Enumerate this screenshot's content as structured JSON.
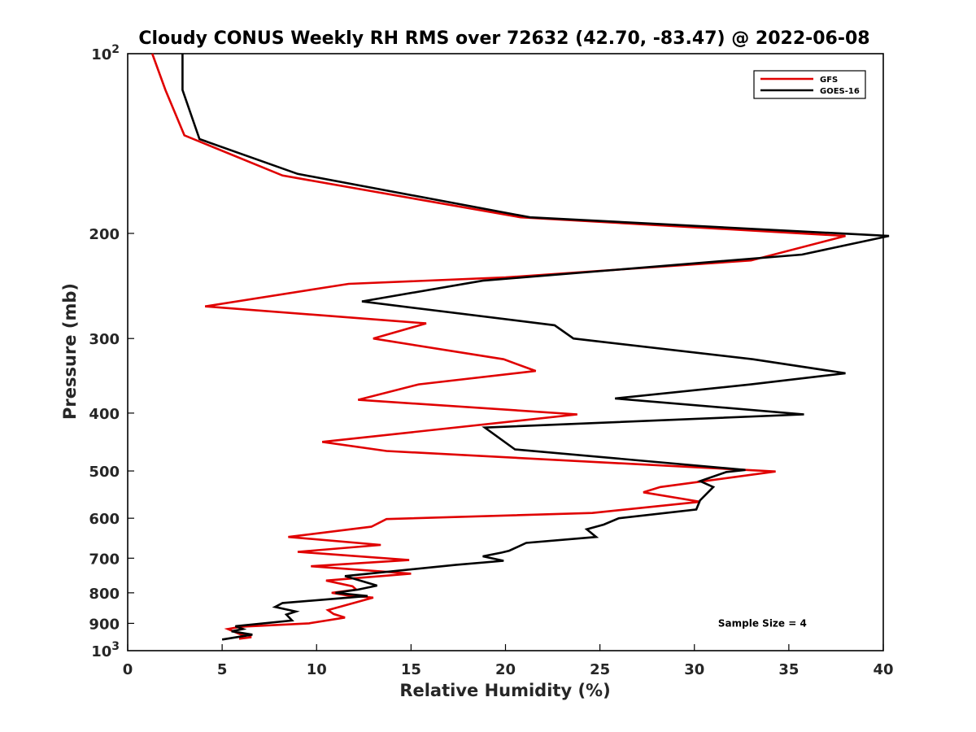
{
  "chart_data": {
    "type": "line",
    "title": "Cloudy CONUS Weekly RH RMS over 72632 (42.70, -83.47) @ 2022-06-08",
    "xlabel": "Relative Humidity (%)",
    "ylabel": "Pressure (mb)",
    "xlim": [
      0,
      40
    ],
    "ylim": [
      100,
      1000
    ],
    "y_scale": "log",
    "y_reversed": true,
    "grid": false,
    "legend_position": "top-right",
    "x_ticks": [
      0,
      5,
      10,
      15,
      20,
      25,
      30,
      35,
      40
    ],
    "x_tick_labels": [
      "0",
      "5",
      "10",
      "15",
      "20",
      "25",
      "30",
      "35",
      "40"
    ],
    "y_ticks": [
      200,
      300,
      400,
      500,
      600,
      700,
      800,
      900
    ],
    "y_tick_labels": [
      "200",
      "300",
      "400",
      "500",
      "600",
      "700",
      "800",
      "900"
    ],
    "y_end_ticks": [
      {
        "value": 100,
        "base": "10",
        "exp": "2"
      },
      {
        "value": 1000,
        "base": "10",
        "exp": "3"
      }
    ],
    "series": [
      {
        "name": "GFS",
        "color": "#e00000",
        "points": [
          [
            1.3,
            100
          ],
          [
            2.0,
            115
          ],
          [
            3.0,
            137
          ],
          [
            8.2,
            160
          ],
          [
            20.8,
            188
          ],
          [
            38.0,
            202
          ],
          [
            33.0,
            222
          ],
          [
            20.0,
            237
          ],
          [
            11.7,
            243
          ],
          [
            4.1,
            265
          ],
          [
            15.8,
            283
          ],
          [
            13.0,
            300
          ],
          [
            19.9,
            325
          ],
          [
            21.6,
            340
          ],
          [
            15.4,
            358
          ],
          [
            12.2,
            380
          ],
          [
            23.8,
            402
          ],
          [
            10.3,
            447
          ],
          [
            13.7,
            463
          ],
          [
            34.3,
            501
          ],
          [
            28.2,
            532
          ],
          [
            27.3,
            543
          ],
          [
            30.3,
            563
          ],
          [
            24.6,
            588
          ],
          [
            13.7,
            602
          ],
          [
            12.9,
            620
          ],
          [
            8.5,
            645
          ],
          [
            13.4,
            665
          ],
          [
            9.0,
            683
          ],
          [
            14.9,
            705
          ],
          [
            9.7,
            722
          ],
          [
            15.0,
            743
          ],
          [
            10.5,
            763
          ],
          [
            11.9,
            780
          ],
          [
            12.1,
            790
          ],
          [
            10.8,
            800
          ],
          [
            11.6,
            808
          ],
          [
            13.0,
            815
          ],
          [
            10.6,
            855
          ],
          [
            10.9,
            868
          ],
          [
            11.5,
            880
          ],
          [
            9.6,
            900
          ],
          [
            6.0,
            912
          ],
          [
            5.3,
            920
          ],
          [
            6.0,
            940
          ],
          [
            6.5,
            945
          ],
          [
            6.5,
            950
          ],
          [
            5.9,
            955
          ]
        ]
      },
      {
        "name": "GOES-16",
        "color": "#000000",
        "points": [
          [
            2.9,
            100
          ],
          [
            2.9,
            115
          ],
          [
            3.8,
            139
          ],
          [
            9.0,
            159
          ],
          [
            21.3,
            188
          ],
          [
            40.3,
            202
          ],
          [
            35.7,
            217
          ],
          [
            18.8,
            240
          ],
          [
            12.4,
            260
          ],
          [
            22.6,
            285
          ],
          [
            23.6,
            300
          ],
          [
            33.1,
            325
          ],
          [
            38.0,
            343
          ],
          [
            33.0,
            358
          ],
          [
            25.8,
            378
          ],
          [
            35.8,
            402
          ],
          [
            18.9,
            423
          ],
          [
            20.5,
            460
          ],
          [
            32.7,
            498
          ],
          [
            31.7,
            502
          ],
          [
            30.3,
            520
          ],
          [
            31.0,
            532
          ],
          [
            30.3,
            560
          ],
          [
            30.1,
            580
          ],
          [
            26.0,
            600
          ],
          [
            25.2,
            615
          ],
          [
            24.3,
            626
          ],
          [
            24.8,
            645
          ],
          [
            21.1,
            660
          ],
          [
            20.2,
            680
          ],
          [
            19.8,
            685
          ],
          [
            18.8,
            695
          ],
          [
            19.9,
            707
          ],
          [
            17.4,
            718
          ],
          [
            11.5,
            750
          ],
          [
            13.2,
            778
          ],
          [
            12.2,
            790
          ],
          [
            11.0,
            800
          ],
          [
            12.7,
            810
          ],
          [
            8.2,
            832
          ],
          [
            7.8,
            845
          ],
          [
            8.9,
            860
          ],
          [
            8.4,
            870
          ],
          [
            8.7,
            890
          ],
          [
            5.7,
            910
          ],
          [
            6.1,
            920
          ],
          [
            5.5,
            928
          ],
          [
            6.6,
            940
          ],
          [
            5.0,
            958
          ]
        ]
      }
    ],
    "annotations": [
      {
        "text": "Sample Size = 4",
        "x": 33.6,
        "y": 900
      }
    ]
  }
}
